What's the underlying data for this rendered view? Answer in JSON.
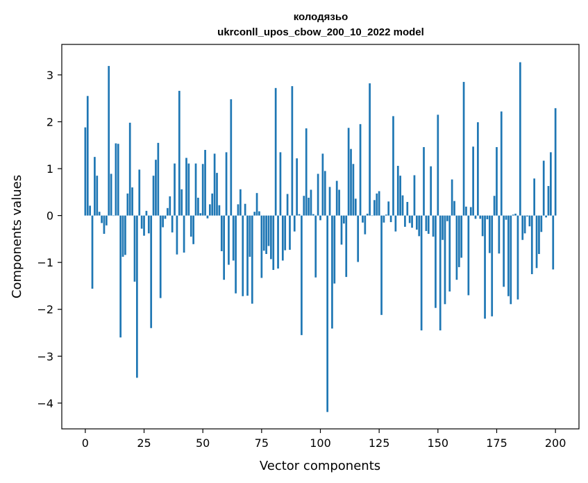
{
  "chart_data": {
    "type": "bar",
    "title_line1": "колодязьо",
    "title_line2": "ukrconll_upos_cbow_200_10_2022 model",
    "xlabel": "Vector components",
    "ylabel": "Components values",
    "xlim": [
      -10,
      210
    ],
    "ylim": [
      -4.55,
      3.65
    ],
    "xticks": [
      0,
      25,
      50,
      75,
      100,
      125,
      150,
      175,
      200
    ],
    "yticks": [
      -4,
      -3,
      -2,
      -1,
      0,
      1,
      2,
      3
    ],
    "bar_color": "#1f77b4",
    "values": [
      1.88,
      2.55,
      0.21,
      -1.56,
      1.25,
      0.85,
      0.08,
      -0.16,
      -0.39,
      -0.21,
      3.19,
      0.89,
      0.0,
      1.54,
      1.53,
      -2.6,
      -0.88,
      -0.84,
      0.47,
      1.98,
      0.6,
      -1.41,
      -3.46,
      0.98,
      -0.28,
      -0.43,
      0.1,
      -0.38,
      -2.4,
      0.85,
      1.19,
      1.55,
      -1.76,
      -0.25,
      -0.07,
      0.16,
      0.41,
      -0.36,
      1.11,
      -0.83,
      2.66,
      0.56,
      -0.79,
      1.23,
      1.11,
      -0.45,
      -0.61,
      1.11,
      0.38,
      0.05,
      1.1,
      1.4,
      -0.06,
      0.24,
      0.47,
      1.32,
      0.91,
      0.22,
      -0.76,
      -1.37,
      1.35,
      -1.05,
      2.48,
      -0.96,
      -1.66,
      0.24,
      0.56,
      -1.72,
      0.25,
      -1.71,
      -0.88,
      -1.88,
      0.08,
      0.48,
      0.09,
      -1.33,
      -0.75,
      -0.82,
      -0.65,
      -0.93,
      -1.16,
      2.72,
      -1.13,
      1.35,
      -0.96,
      -0.74,
      0.46,
      -0.73,
      2.76,
      -0.34,
      1.22,
      0.03,
      -2.55,
      0.42,
      1.86,
      0.38,
      0.55,
      0.03,
      -1.32,
      0.89,
      -0.1,
      1.32,
      0.95,
      -4.19,
      0.61,
      -2.41,
      -1.45,
      0.74,
      0.55,
      -0.62,
      -0.17,
      -1.31,
      1.87,
      1.42,
      1.1,
      0.36,
      -0.99,
      1.95,
      -0.15,
      -0.4,
      0.04,
      2.82,
      0.0,
      0.33,
      0.47,
      0.52,
      -2.12,
      -0.15,
      0.02,
      0.3,
      -0.14,
      2.12,
      -0.34,
      1.06,
      0.85,
      0.43,
      -0.24,
      0.29,
      -0.16,
      -0.26,
      0.86,
      -0.3,
      -0.44,
      -2.45,
      1.46,
      -0.33,
      -0.39,
      1.05,
      -0.45,
      -1.97,
      2.15,
      -2.45,
      -0.52,
      -1.89,
      -0.12,
      -1.62,
      0.77,
      0.31,
      -1.37,
      -1.1,
      -0.9,
      2.85,
      0.19,
      -1.7,
      0.18,
      1.47,
      -0.07,
      1.99,
      -0.07,
      -0.44,
      -2.2,
      -0.08,
      -0.8,
      -2.15,
      0.42,
      1.46,
      -0.81,
      2.22,
      -1.52,
      -0.09,
      -1.72,
      -1.89,
      0.02,
      0.04,
      -1.79,
      3.27,
      -0.52,
      -0.38,
      -0.02,
      -0.23,
      -1.25,
      0.79,
      -1.12,
      -0.82,
      -0.35,
      1.17,
      -0.04,
      0.63,
      1.35,
      -1.15,
      2.29
    ]
  }
}
